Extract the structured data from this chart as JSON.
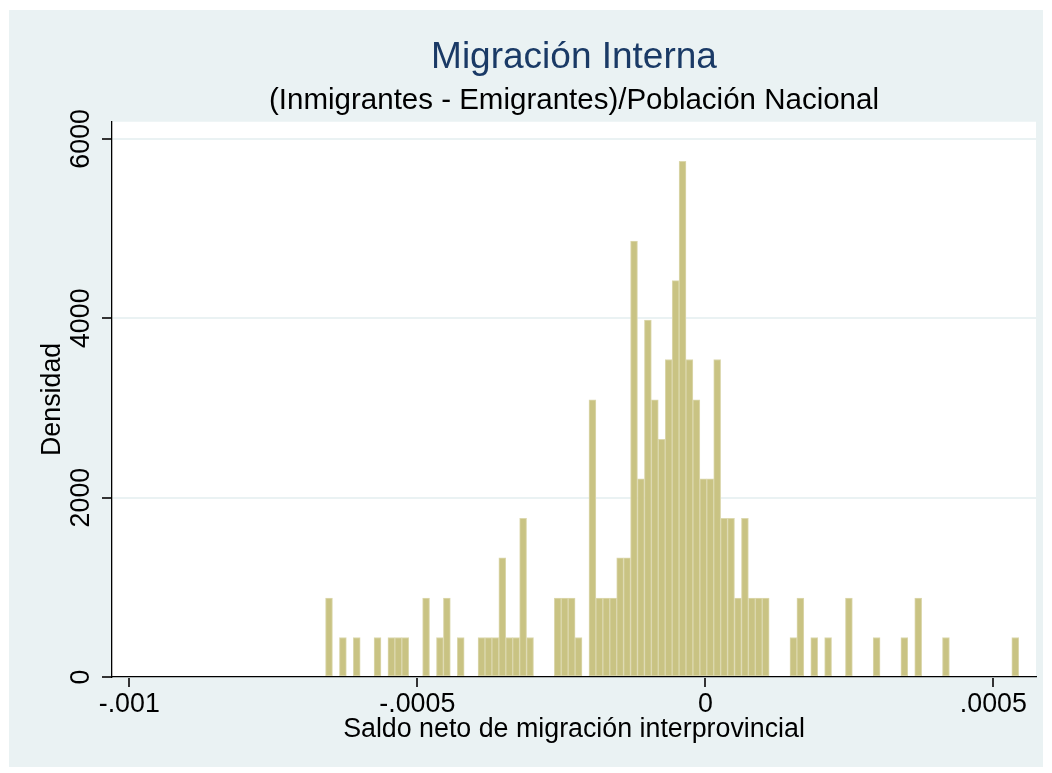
{
  "chart_data": {
    "type": "histogram",
    "title": "Migración Interna",
    "subtitle": "(Inmigrantes - Emigrantes)/Población Nacional",
    "xlabel": "Saldo neto de migración interprovincial",
    "ylabel": "Densidad",
    "bins": [
      -0.0006593,
      -0.0006473,
      -0.0006352,
      -0.0006232,
      -0.0006112,
      -0.0005991,
      -0.0005871,
      -0.0005751,
      -0.000563,
      -0.000551,
      -0.000539,
      -0.0005269,
      -0.0005149,
      -0.0005029,
      -0.0004908,
      -0.0004788,
      -0.0004668,
      -0.0004547,
      -0.0004427,
      -0.0004307,
      -0.0004186,
      -0.0004066,
      -0.0003946,
      -0.0003825,
      -0.0003705,
      -0.0003585,
      -0.0003464,
      -0.0003344,
      -0.0003224,
      -0.0003103,
      -0.0002983,
      -0.0002863,
      -0.0002742,
      -0.0002622,
      -0.0002502,
      -0.0002381,
      -0.0002261,
      -0.0002141,
      -0.000202,
      -0.00019,
      -0.000178,
      -0.0001659,
      -0.0001539,
      -0.0001419,
      -0.0001298,
      -0.0001178,
      -0.0001058,
      -9.37e-05,
      -8.17e-05,
      -6.97e-05,
      -5.76e-05,
      -4.56e-05,
      -3.36e-05,
      -2.16e-05,
      -9.5e-06,
      2.5e-06,
      1.45e-05,
      2.66e-05,
      3.86e-05,
      5.06e-05,
      6.27e-05,
      7.47e-05,
      8.67e-05,
      9.88e-05,
      0.0001108,
      0.0001228,
      0.0001349,
      0.0001469,
      0.0001589,
      0.000171,
      0.000183,
      0.000195,
      0.0002071,
      0.0002191,
      0.0002311,
      0.0002432,
      0.0002552,
      0.0002672,
      0.0002793,
      0.0002913,
      0.0003033,
      0.0003154,
      0.0003274,
      0.0003394,
      0.0003515,
      0.0003635,
      0.0003755,
      0.0003876,
      0.0003996,
      0.0004116,
      0.0004237,
      0.0004357,
      0.0004477,
      0.0004598,
      0.0004718,
      0.0004838,
      0.0004959,
      0.0005079,
      0.0005199,
      0.000532,
      0.000544
    ],
    "values": [
      880,
      0,
      440,
      0,
      440,
      0,
      0,
      440,
      0,
      440,
      440,
      440,
      0,
      0,
      880,
      0,
      440,
      880,
      0,
      440,
      0,
      0,
      440,
      440,
      440,
      1330,
      440,
      440,
      1770,
      440,
      0,
      0,
      0,
      880,
      880,
      880,
      440,
      0,
      3090,
      880,
      880,
      880,
      1330,
      1330,
      4860,
      2210,
      3980,
      3090,
      2650,
      3540,
      4420,
      5750,
      3540,
      3090,
      2210,
      2210,
      3540,
      1770,
      1770,
      880,
      1770,
      880,
      880,
      880,
      0,
      0,
      0,
      440,
      880,
      0,
      440,
      0,
      440,
      0,
      0,
      880,
      0,
      0,
      0,
      440,
      0,
      0,
      0,
      440,
      0,
      880,
      0,
      0,
      0,
      440,
      0,
      0,
      0,
      0,
      0,
      0,
      0,
      0,
      0,
      440
    ],
    "color": "#c9c383",
    "xlim": [
      -0.00103,
      0.000574
    ],
    "xticks": [
      {
        "value": -0.001,
        "label": "-.001"
      },
      {
        "value": -0.0005,
        "label": "-.0005"
      },
      0,
      {
        "value": 0.0005,
        "label": ".0005"
      }
    ],
    "ylim": [
      0,
      6190
    ],
    "yticks": [
      0,
      2000,
      4000,
      6000
    ],
    "grid": "y"
  }
}
